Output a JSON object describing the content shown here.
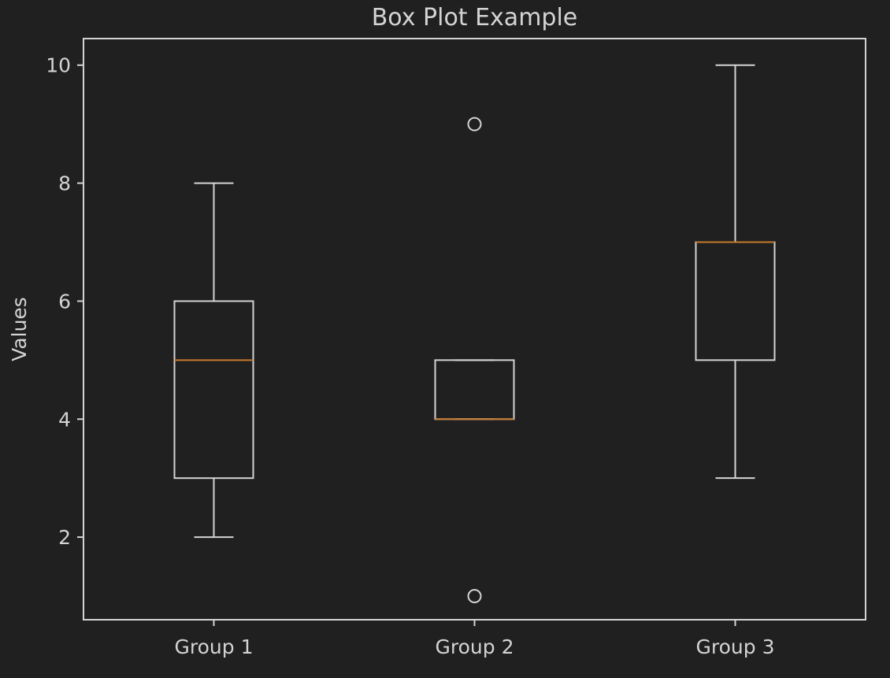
{
  "colors": {
    "background": "#202020",
    "foreground": "#d4d4d4",
    "median": "#c57a2c"
  },
  "chart_data": {
    "type": "box",
    "title": "Box Plot Example",
    "xlabel": "",
    "ylabel": "Values",
    "ylim": [
      0.6,
      10.45
    ],
    "yticks": [
      2,
      4,
      6,
      8,
      10
    ],
    "grid": false,
    "categories": [
      "Group 1",
      "Group 2",
      "Group 3"
    ],
    "boxes": [
      {
        "whisker_low": 2,
        "q1": 3,
        "median": 5,
        "q3": 6,
        "whisker_high": 8,
        "outliers": []
      },
      {
        "whisker_low": 4,
        "q1": 4,
        "median": 4,
        "q3": 5,
        "whisker_high": 5,
        "outliers": [
          9,
          1
        ]
      },
      {
        "whisker_low": 3,
        "q1": 5,
        "median": 7,
        "q3": 7,
        "whisker_high": 10,
        "outliers": []
      }
    ]
  }
}
